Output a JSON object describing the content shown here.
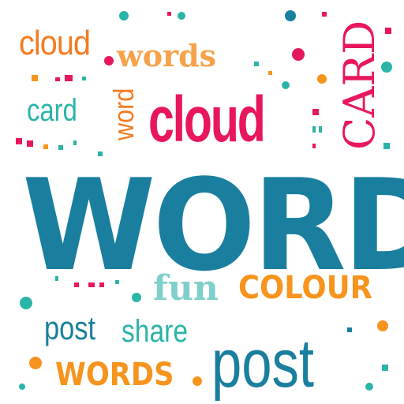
{
  "colors": {
    "orange": "#f47b20",
    "light_orange": "#f7a24a",
    "pink": "#e8175d",
    "teal": "#2bb4a8",
    "blue": "#1a7f9e",
    "mint": "#80cfcb"
  },
  "words": {
    "cloud_small": "cloud",
    "words_serif": "words",
    "card_small": "card",
    "word_vertical": "word",
    "cloud_big": "cloud",
    "card_vertical": "CARD",
    "word_huge": "WORD",
    "fun": "fun",
    "colour": "COLOUR",
    "post_small": "post",
    "share": "share",
    "post_big": "post",
    "words_bold": "WORDS"
  }
}
